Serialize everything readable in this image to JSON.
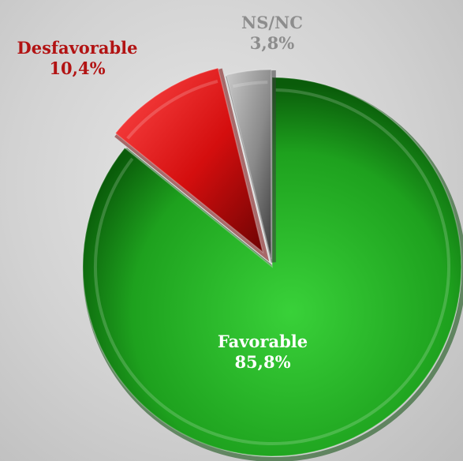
{
  "chart_data": {
    "type": "pie",
    "slices": [
      {
        "label": "Favorable",
        "value_label": "85,8%",
        "value": 85.8,
        "color": "#1ea11e",
        "label_color": "#ffffff"
      },
      {
        "label": "Desfavorable",
        "value_label": "10,4%",
        "value": 10.4,
        "color": "#d40e0e",
        "label_color": "#b21313"
      },
      {
        "label": "NS/NC",
        "value_label": "3,8%",
        "value": 3.8,
        "color": "#8a8a8a",
        "label_color": "#8d8d8d"
      }
    ],
    "legend": "none",
    "exploded": true
  }
}
